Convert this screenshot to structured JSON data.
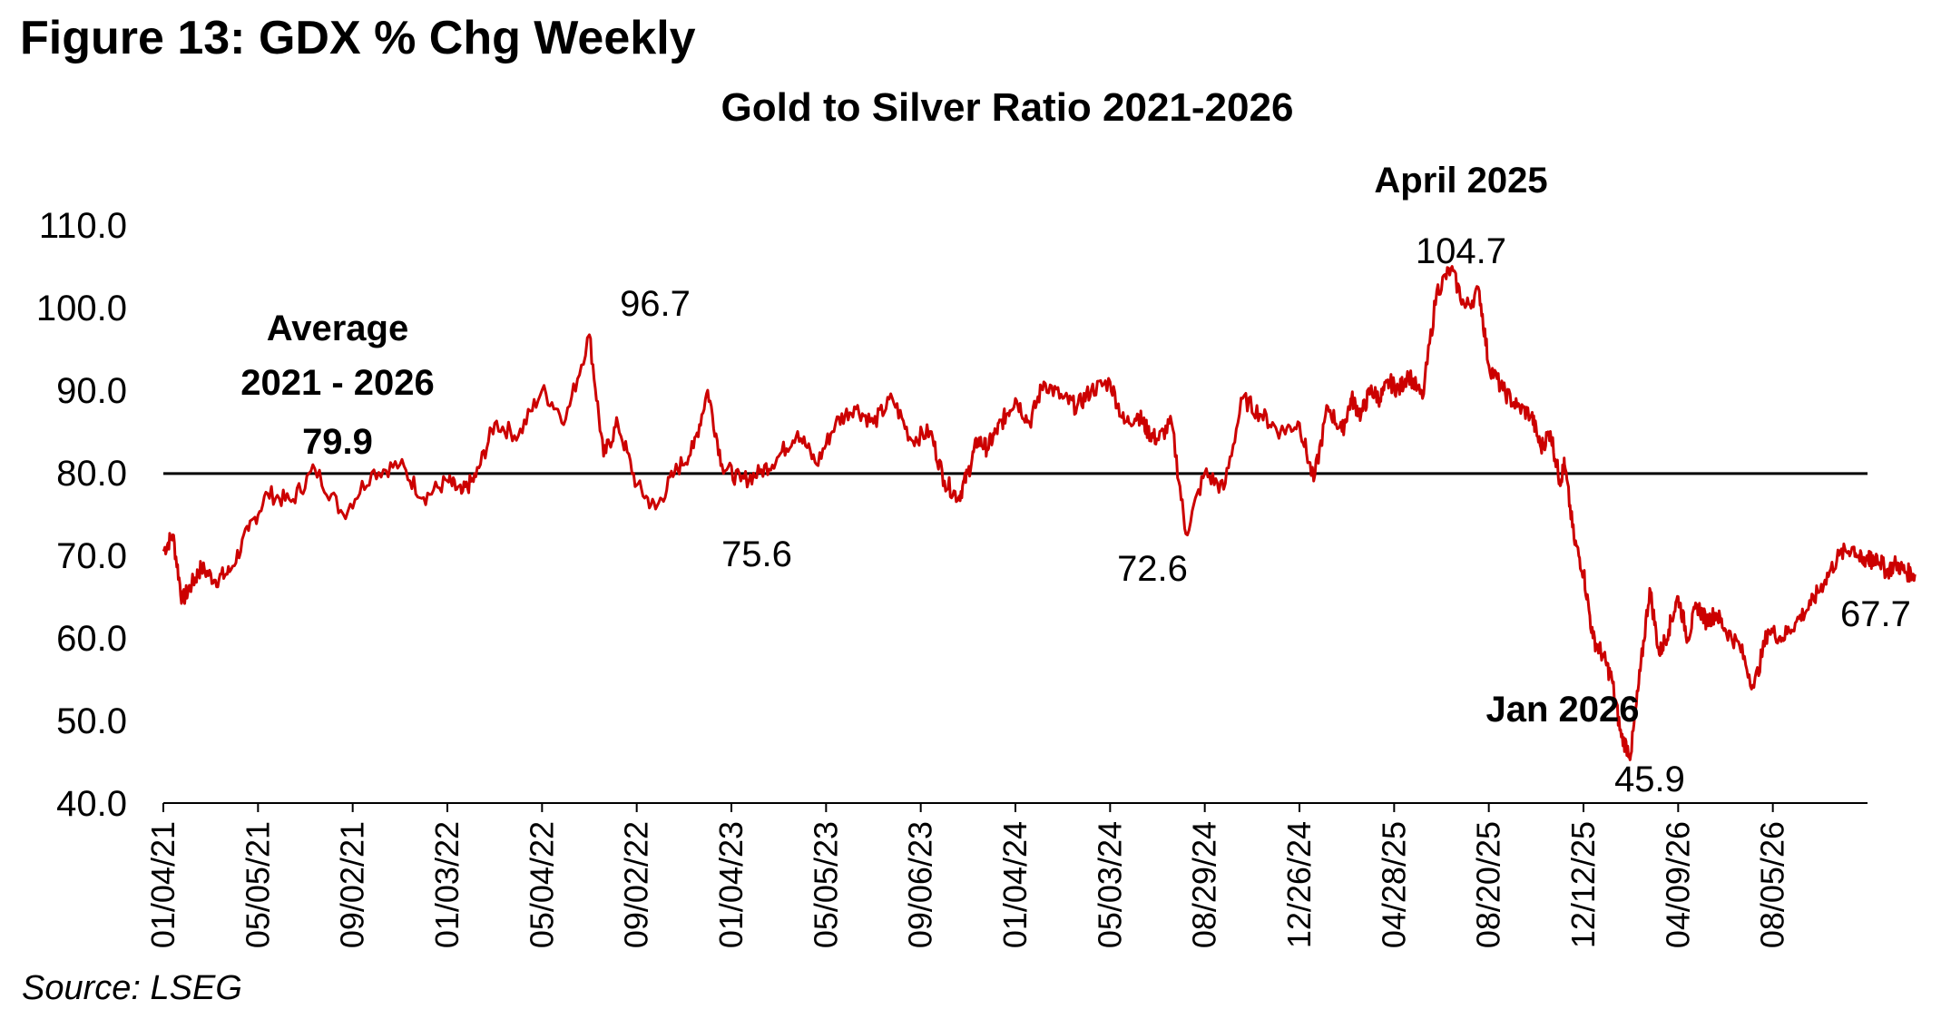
{
  "figure_title": "Figure 13: GDX % Chg Weekly",
  "source": "Source: LSEG",
  "chart_data": {
    "type": "line",
    "title": "Gold to Silver Ratio 2021-2026",
    "xlabel": "",
    "ylabel": "",
    "ylim": [
      40,
      110
    ],
    "yticks": [
      "110.0",
      "100.0",
      "90.0",
      "80.0",
      "70.0",
      "60.0",
      "50.0",
      "40.0"
    ],
    "xticks": [
      "01/04/21",
      "05/05/21",
      "09/02/21",
      "01/03/22",
      "05/04/22",
      "09/02/22",
      "01/04/23",
      "05/05/23",
      "09/06/23",
      "01/04/24",
      "05/03/24",
      "08/29/24",
      "12/26/24",
      "04/28/25",
      "08/20/25",
      "12/12/25",
      "04/09/26",
      "08/05/26"
    ],
    "series_color": "#cc0000",
    "average": {
      "value": 79.9,
      "label_line1": "Average",
      "label_line2": "2021 - 2026",
      "value_label": "79.9"
    },
    "annotations": [
      {
        "text": "96.7",
        "bold": false
      },
      {
        "text": "75.6",
        "bold": false
      },
      {
        "text": "72.6",
        "bold": false
      },
      {
        "text": "April 2025",
        "bold": true
      },
      {
        "text": "104.7",
        "bold": false
      },
      {
        "text": "Jan 2026",
        "bold": true
      },
      {
        "text": "45.9",
        "bold": false
      },
      {
        "text": "67.7",
        "bold": false
      }
    ],
    "series": [
      {
        "x": [
          0,
          0.2,
          0.4,
          0.6,
          0.8,
          1.1,
          1.4,
          1.8,
          2.2,
          2.7,
          3.2,
          3.8,
          4.4,
          5,
          5.5,
          6,
          6.3,
          6.6,
          7,
          7.5,
          8,
          8.5,
          9,
          9.3,
          9.6,
          10,
          10.4,
          10.8,
          11.2,
          11.5,
          11.8,
          12.2,
          12.6,
          13,
          13.4,
          13.8,
          14.2,
          14.6,
          15,
          15.4,
          15.8,
          16.2,
          16.5,
          16.8,
          17
        ],
        "y": [
          70.5,
          72.5,
          64.5,
          66.5,
          68.5,
          67,
          68,
          73,
          77.5,
          76.5,
          80.5,
          75,
          80,
          81,
          77,
          79,
          77.5,
          79.5,
          86,
          84.5,
          90,
          86.5,
          96.7,
          82,
          86,
          78.5,
          75.6,
          80,
          83,
          90,
          81,
          79,
          80,
          82,
          85,
          81,
          86,
          88,
          86,
          89,
          84,
          85,
          79,
          77,
          80
        ],
        "x_unit": "tick index (0 = 01/04/21 ... 17 = 08/05/26)"
      },
      {
        "x": [
          17,
          17.2,
          17.4,
          17.6,
          17.8,
          18,
          18.3,
          18.6,
          19,
          19.3,
          19.6,
          20,
          20.3,
          20.6,
          20.8,
          21,
          21.3,
          21.6,
          22,
          22.4,
          22.8,
          23.2,
          23.6,
          24,
          24.3,
          24.6,
          24.9,
          25.1,
          25.3,
          25.5,
          25.7,
          25.9,
          26.1,
          26.3,
          26.6,
          26.9,
          27.2,
          27.5,
          27.8,
          28,
          28.3,
          28.6,
          28.9,
          29.1,
          29.3,
          29.5,
          29.6
        ],
        "y": [
          80,
          84,
          83,
          85,
          87,
          89,
          86,
          91,
          89,
          88,
          90,
          91,
          86,
          87,
          85,
          84,
          86,
          72.6,
          80,
          78,
          89,
          87,
          85,
          86,
          79,
          88,
          85,
          89,
          87,
          90,
          89,
          91,
          90,
          92,
          89,
          102,
          104.7,
          100,
          102,
          93,
          90,
          88,
          87,
          83,
          85,
          79,
          81
        ]
      },
      {
        "x": [
          29.6,
          29.8,
          30,
          30.2,
          30.4,
          30.6,
          30.8,
          31,
          31.2,
          31.4,
          31.6,
          31.8,
          32,
          32.2,
          32.4,
          32.6,
          32.8,
          33,
          33.3,
          33.6,
          33.9,
          34.2,
          34.5,
          34.8,
          35.1,
          35.4,
          35.7,
          35.9,
          36,
          36.1,
          36.2,
          36.4,
          36.6,
          36.8,
          37
        ],
        "y": [
          81,
          72,
          68,
          60,
          58,
          55,
          48,
          45.9,
          56,
          66,
          58,
          61,
          65,
          60,
          64,
          62,
          63,
          61,
          59,
          54,
          61,
          60,
          62,
          64,
          67,
          70,
          71,
          69,
          70,
          69,
          70,
          68,
          69,
          68,
          67.7
        ],
        "x_unit": "tick index"
      }
    ]
  }
}
